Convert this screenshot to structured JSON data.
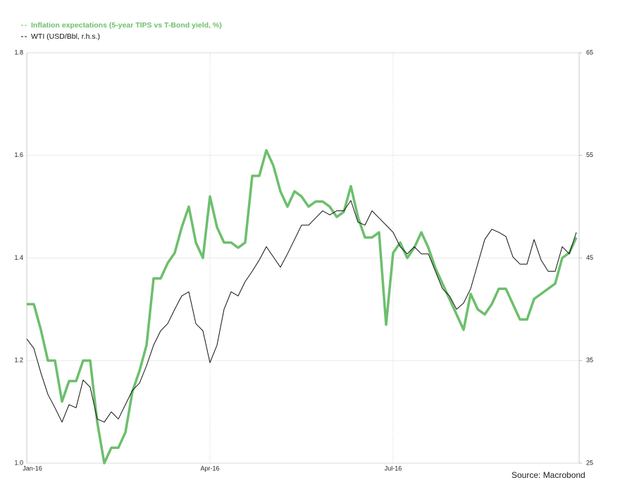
{
  "chart_data": {
    "type": "line",
    "categories": [
      "Jan-16",
      null,
      null,
      null,
      null,
      null,
      null,
      null,
      null,
      null,
      null,
      null,
      null,
      null,
      null,
      null,
      null,
      null,
      null,
      null,
      null,
      null,
      null,
      null,
      null,
      null,
      "Apr-16",
      null,
      null,
      null,
      null,
      null,
      null,
      null,
      null,
      null,
      null,
      null,
      null,
      null,
      null,
      null,
      null,
      null,
      null,
      null,
      null,
      null,
      null,
      null,
      null,
      null,
      "Jul-16",
      null,
      null,
      null,
      null,
      null,
      null,
      null,
      null,
      null,
      null,
      null,
      null,
      null,
      null,
      null,
      null,
      null,
      null,
      null,
      null,
      null,
      null,
      null,
      null,
      null,
      null
    ],
    "series": [
      {
        "name": "Inflation expectations (5-year TIPS vs T-Bond yield, %)",
        "color": "#6cbf6c",
        "values": [
          1.31,
          1.31,
          1.26,
          1.2,
          1.2,
          1.12,
          1.16,
          1.16,
          1.2,
          1.2,
          1.08,
          1.0,
          1.03,
          1.03,
          1.06,
          1.14,
          1.18,
          1.23,
          1.36,
          1.36,
          1.39,
          1.41,
          1.46,
          1.5,
          1.43,
          1.4,
          1.52,
          1.46,
          1.43,
          1.43,
          1.42,
          1.43,
          1.56,
          1.56,
          1.61,
          1.58,
          1.53,
          1.5,
          1.53,
          1.52,
          1.5,
          1.51,
          1.51,
          1.5,
          1.48,
          1.49,
          1.54,
          1.48,
          1.44,
          1.44,
          1.45,
          1.27,
          1.41,
          1.43,
          1.4,
          1.42,
          1.45,
          1.42,
          1.38,
          1.35,
          1.32,
          1.29,
          1.26,
          1.33,
          1.3,
          1.29,
          1.31,
          1.34,
          1.34,
          1.31,
          1.28,
          1.28,
          1.32,
          1.33,
          1.34,
          1.35,
          1.4,
          1.41,
          1.44
        ]
      },
      {
        "name": "WTI (USD/Bbl, r.h.s.)",
        "color": "#111111",
        "axis": "y2",
        "values": [
          37.1,
          36.2,
          33.8,
          31.7,
          30.4,
          29.0,
          30.7,
          30.4,
          33.1,
          32.4,
          29.3,
          29.0,
          30.0,
          29.3,
          30.7,
          32.1,
          32.8,
          34.5,
          36.5,
          37.9,
          38.6,
          40.0,
          41.3,
          41.7,
          38.6,
          37.9,
          34.8,
          36.5,
          40.0,
          41.7,
          41.3,
          42.7,
          43.7,
          44.8,
          46.1,
          45.1,
          44.1,
          45.4,
          46.8,
          48.2,
          48.2,
          48.9,
          49.6,
          49.2,
          49.6,
          49.6,
          50.6,
          48.5,
          48.2,
          49.6,
          48.9,
          48.2,
          47.5,
          46.1,
          45.4,
          46.1,
          45.4,
          45.4,
          43.7,
          42.0,
          41.3,
          40.0,
          40.6,
          42.0,
          44.4,
          46.8,
          47.8,
          47.5,
          47.1,
          45.1,
          44.4,
          44.4,
          46.8,
          44.8,
          43.7,
          43.7,
          46.1,
          45.4,
          47.5
        ]
      }
    ],
    "ylim": [
      1.0,
      1.8
    ],
    "yticks": [
      {
        "value": 1,
        "label": "1.0"
      },
      1.2,
      1.4,
      1.6,
      1.8
    ],
    "y2lim": [
      25,
      65
    ],
    "y2ticks": [
      25,
      35,
      45,
      55,
      65
    ],
    "grid": true,
    "annotation": "Source: Macrobond"
  }
}
